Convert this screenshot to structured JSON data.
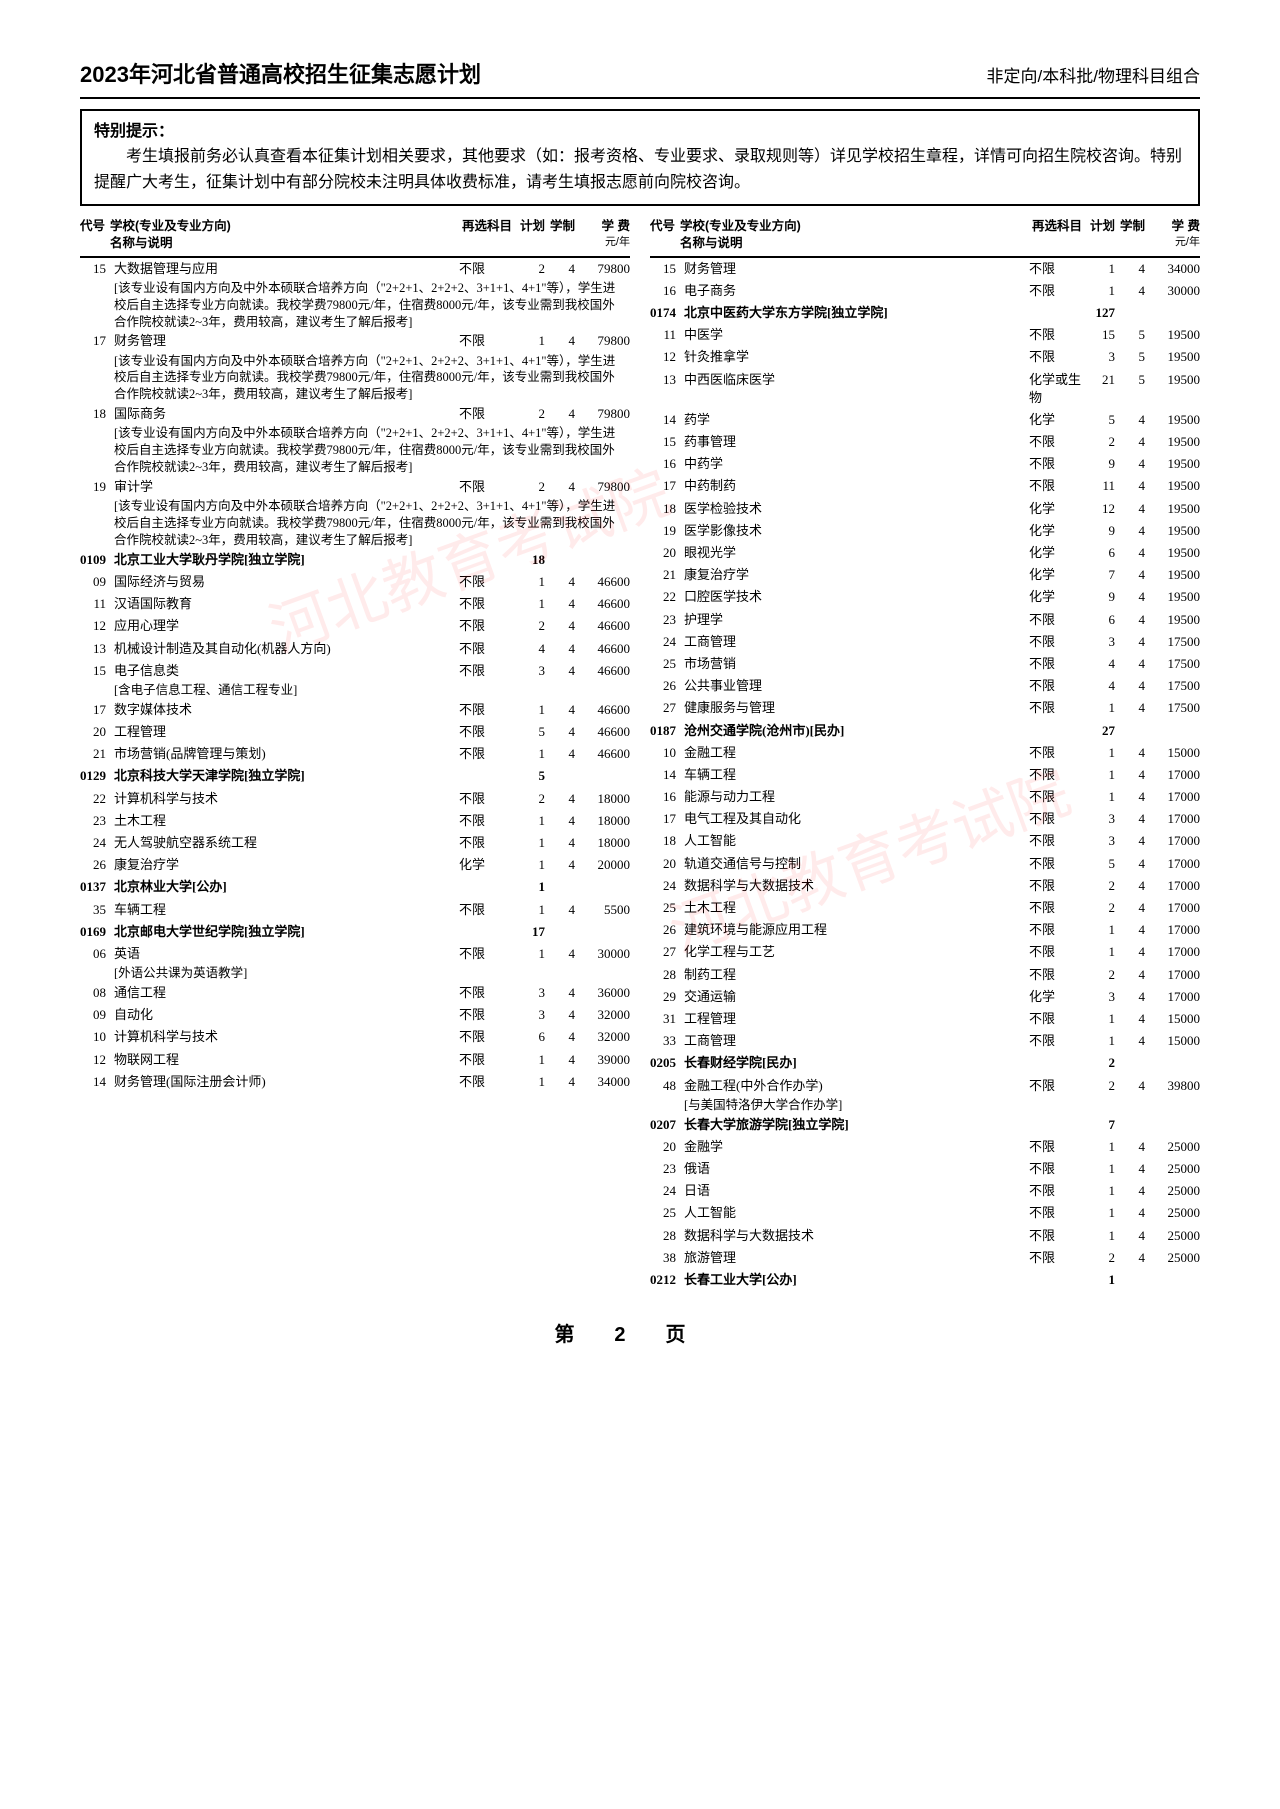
{
  "header": {
    "left": "2023年河北省普通高校招生征集志愿计划",
    "right": "非定向/本科批/物理科目组合"
  },
  "notice": {
    "title": "特别提示：",
    "body": "考生填报前务必认真查看本征集计划相关要求，其他要求（如：报考资格、专业要求、录取规则等）详见学校招生章程，详情可向招生院校咨询。特别提醒广大考生，征集计划中有部分院校未注明具体收费标准，请考生填报志愿前向院校咨询。"
  },
  "colhead": {
    "code": "代号",
    "name1": "学校(专业及专业方向)",
    "name2": "名称与说明",
    "subj": "再选科目",
    "plan": "计划",
    "year": "学制",
    "fee": "学 费",
    "feesub": "元/年"
  },
  "left_rows": [
    {
      "t": "m",
      "code": "15",
      "name": "大数据管理与应用",
      "subj": "不限",
      "plan": "2",
      "year": "4",
      "fee": "79800"
    },
    {
      "t": "r",
      "text": "[该专业设有国内方向及中外本硕联合培养方向（\"2+2+1、2+2+2、3+1+1、4+1\"等），学生进校后自主选择专业方向就读。我校学费79800元/年，住宿费8000元/年，该专业需到我校国外合作院校就读2~3年，费用较高，建议考生了解后报考]"
    },
    {
      "t": "m",
      "code": "17",
      "name": "财务管理",
      "subj": "不限",
      "plan": "1",
      "year": "4",
      "fee": "79800"
    },
    {
      "t": "r",
      "text": "[该专业设有国内方向及中外本硕联合培养方向（\"2+2+1、2+2+2、3+1+1、4+1\"等），学生进校后自主选择专业方向就读。我校学费79800元/年，住宿费8000元/年，该专业需到我校国外合作院校就读2~3年，费用较高，建议考生了解后报考]"
    },
    {
      "t": "m",
      "code": "18",
      "name": "国际商务",
      "subj": "不限",
      "plan": "2",
      "year": "4",
      "fee": "79800"
    },
    {
      "t": "r",
      "text": "[该专业设有国内方向及中外本硕联合培养方向（\"2+2+1、2+2+2、3+1+1、4+1\"等），学生进校后自主选择专业方向就读。我校学费79800元/年，住宿费8000元/年，该专业需到我校国外合作院校就读2~3年，费用较高，建议考生了解后报考]"
    },
    {
      "t": "m",
      "code": "19",
      "name": "审计学",
      "subj": "不限",
      "plan": "2",
      "year": "4",
      "fee": "79800"
    },
    {
      "t": "r",
      "text": "[该专业设有国内方向及中外本硕联合培养方向（\"2+2+1、2+2+2、3+1+1、4+1\"等），学生进校后自主选择专业方向就读。我校学费79800元/年，住宿费8000元/年，该专业需到我校国外合作院校就读2~3年，费用较高，建议考生了解后报考]"
    },
    {
      "t": "s",
      "code": "0109",
      "name": "北京工业大学耿丹学院[独立学院]",
      "plan": "18"
    },
    {
      "t": "m",
      "code": "09",
      "name": "国际经济与贸易",
      "subj": "不限",
      "plan": "1",
      "year": "4",
      "fee": "46600"
    },
    {
      "t": "m",
      "code": "11",
      "name": "汉语国际教育",
      "subj": "不限",
      "plan": "1",
      "year": "4",
      "fee": "46600"
    },
    {
      "t": "m",
      "code": "12",
      "name": "应用心理学",
      "subj": "不限",
      "plan": "2",
      "year": "4",
      "fee": "46600"
    },
    {
      "t": "m",
      "code": "13",
      "name": "机械设计制造及其自动化(机器人方向)",
      "subj": "不限",
      "plan": "4",
      "year": "4",
      "fee": "46600"
    },
    {
      "t": "m",
      "code": "15",
      "name": "电子信息类",
      "subj": "不限",
      "plan": "3",
      "year": "4",
      "fee": "46600"
    },
    {
      "t": "r",
      "text": "[含电子信息工程、通信工程专业]"
    },
    {
      "t": "m",
      "code": "17",
      "name": "数字媒体技术",
      "subj": "不限",
      "plan": "1",
      "year": "4",
      "fee": "46600"
    },
    {
      "t": "m",
      "code": "20",
      "name": "工程管理",
      "subj": "不限",
      "plan": "5",
      "year": "4",
      "fee": "46600"
    },
    {
      "t": "m",
      "code": "21",
      "name": "市场营销(品牌管理与策划)",
      "subj": "不限",
      "plan": "1",
      "year": "4",
      "fee": "46600"
    },
    {
      "t": "s",
      "code": "0129",
      "name": "北京科技大学天津学院[独立学院]",
      "plan": "5"
    },
    {
      "t": "m",
      "code": "22",
      "name": "计算机科学与技术",
      "subj": "不限",
      "plan": "2",
      "year": "4",
      "fee": "18000"
    },
    {
      "t": "m",
      "code": "23",
      "name": "土木工程",
      "subj": "不限",
      "plan": "1",
      "year": "4",
      "fee": "18000"
    },
    {
      "t": "m",
      "code": "24",
      "name": "无人驾驶航空器系统工程",
      "subj": "不限",
      "plan": "1",
      "year": "4",
      "fee": "18000"
    },
    {
      "t": "m",
      "code": "26",
      "name": "康复治疗学",
      "subj": "化学",
      "plan": "1",
      "year": "4",
      "fee": "20000"
    },
    {
      "t": "s",
      "code": "0137",
      "name": "北京林业大学[公办]",
      "plan": "1"
    },
    {
      "t": "m",
      "code": "35",
      "name": "车辆工程",
      "subj": "不限",
      "plan": "1",
      "year": "4",
      "fee": "5500"
    },
    {
      "t": "s",
      "code": "0169",
      "name": "北京邮电大学世纪学院[独立学院]",
      "plan": "17"
    },
    {
      "t": "m",
      "code": "06",
      "name": "英语",
      "subj": "不限",
      "plan": "1",
      "year": "4",
      "fee": "30000"
    },
    {
      "t": "r",
      "text": "[外语公共课为英语教学]"
    },
    {
      "t": "m",
      "code": "08",
      "name": "通信工程",
      "subj": "不限",
      "plan": "3",
      "year": "4",
      "fee": "36000"
    },
    {
      "t": "m",
      "code": "09",
      "name": "自动化",
      "subj": "不限",
      "plan": "3",
      "year": "4",
      "fee": "32000"
    },
    {
      "t": "m",
      "code": "10",
      "name": "计算机科学与技术",
      "subj": "不限",
      "plan": "6",
      "year": "4",
      "fee": "32000"
    },
    {
      "t": "m",
      "code": "12",
      "name": "物联网工程",
      "subj": "不限",
      "plan": "1",
      "year": "4",
      "fee": "39000"
    },
    {
      "t": "m",
      "code": "14",
      "name": "财务管理(国际注册会计师)",
      "subj": "不限",
      "plan": "1",
      "year": "4",
      "fee": "34000"
    }
  ],
  "right_rows": [
    {
      "t": "m",
      "code": "15",
      "name": "财务管理",
      "subj": "不限",
      "plan": "1",
      "year": "4",
      "fee": "34000"
    },
    {
      "t": "m",
      "code": "16",
      "name": "电子商务",
      "subj": "不限",
      "plan": "1",
      "year": "4",
      "fee": "30000"
    },
    {
      "t": "s",
      "code": "0174",
      "name": "北京中医药大学东方学院[独立学院]",
      "plan": "127"
    },
    {
      "t": "m",
      "code": "11",
      "name": "中医学",
      "subj": "不限",
      "plan": "15",
      "year": "5",
      "fee": "19500"
    },
    {
      "t": "m",
      "code": "12",
      "name": "针灸推拿学",
      "subj": "不限",
      "plan": "3",
      "year": "5",
      "fee": "19500"
    },
    {
      "t": "m",
      "code": "13",
      "name": "中西医临床医学",
      "subj": "化学或生物",
      "plan": "21",
      "year": "5",
      "fee": "19500"
    },
    {
      "t": "m",
      "code": "14",
      "name": "药学",
      "subj": "化学",
      "plan": "5",
      "year": "4",
      "fee": "19500"
    },
    {
      "t": "m",
      "code": "15",
      "name": "药事管理",
      "subj": "不限",
      "plan": "2",
      "year": "4",
      "fee": "19500"
    },
    {
      "t": "m",
      "code": "16",
      "name": "中药学",
      "subj": "不限",
      "plan": "9",
      "year": "4",
      "fee": "19500"
    },
    {
      "t": "m",
      "code": "17",
      "name": "中药制药",
      "subj": "不限",
      "plan": "11",
      "year": "4",
      "fee": "19500"
    },
    {
      "t": "m",
      "code": "18",
      "name": "医学检验技术",
      "subj": "化学",
      "plan": "12",
      "year": "4",
      "fee": "19500"
    },
    {
      "t": "m",
      "code": "19",
      "name": "医学影像技术",
      "subj": "化学",
      "plan": "9",
      "year": "4",
      "fee": "19500"
    },
    {
      "t": "m",
      "code": "20",
      "name": "眼视光学",
      "subj": "化学",
      "plan": "6",
      "year": "4",
      "fee": "19500"
    },
    {
      "t": "m",
      "code": "21",
      "name": "康复治疗学",
      "subj": "化学",
      "plan": "7",
      "year": "4",
      "fee": "19500"
    },
    {
      "t": "m",
      "code": "22",
      "name": "口腔医学技术",
      "subj": "化学",
      "plan": "9",
      "year": "4",
      "fee": "19500"
    },
    {
      "t": "m",
      "code": "23",
      "name": "护理学",
      "subj": "不限",
      "plan": "6",
      "year": "4",
      "fee": "19500"
    },
    {
      "t": "m",
      "code": "24",
      "name": "工商管理",
      "subj": "不限",
      "plan": "3",
      "year": "4",
      "fee": "17500"
    },
    {
      "t": "m",
      "code": "25",
      "name": "市场营销",
      "subj": "不限",
      "plan": "4",
      "year": "4",
      "fee": "17500"
    },
    {
      "t": "m",
      "code": "26",
      "name": "公共事业管理",
      "subj": "不限",
      "plan": "4",
      "year": "4",
      "fee": "17500"
    },
    {
      "t": "m",
      "code": "27",
      "name": "健康服务与管理",
      "subj": "不限",
      "plan": "1",
      "year": "4",
      "fee": "17500"
    },
    {
      "t": "s",
      "code": "0187",
      "name": "沧州交通学院(沧州市)[民办]",
      "plan": "27"
    },
    {
      "t": "m",
      "code": "10",
      "name": "金融工程",
      "subj": "不限",
      "plan": "1",
      "year": "4",
      "fee": "15000"
    },
    {
      "t": "m",
      "code": "14",
      "name": "车辆工程",
      "subj": "不限",
      "plan": "1",
      "year": "4",
      "fee": "17000"
    },
    {
      "t": "m",
      "code": "16",
      "name": "能源与动力工程",
      "subj": "不限",
      "plan": "1",
      "year": "4",
      "fee": "17000"
    },
    {
      "t": "m",
      "code": "17",
      "name": "电气工程及其自动化",
      "subj": "不限",
      "plan": "3",
      "year": "4",
      "fee": "17000"
    },
    {
      "t": "m",
      "code": "18",
      "name": "人工智能",
      "subj": "不限",
      "plan": "3",
      "year": "4",
      "fee": "17000"
    },
    {
      "t": "m",
      "code": "20",
      "name": "轨道交通信号与控制",
      "subj": "不限",
      "plan": "5",
      "year": "4",
      "fee": "17000"
    },
    {
      "t": "m",
      "code": "24",
      "name": "数据科学与大数据技术",
      "subj": "不限",
      "plan": "2",
      "year": "4",
      "fee": "17000"
    },
    {
      "t": "m",
      "code": "25",
      "name": "土木工程",
      "subj": "不限",
      "plan": "2",
      "year": "4",
      "fee": "17000"
    },
    {
      "t": "m",
      "code": "26",
      "name": "建筑环境与能源应用工程",
      "subj": "不限",
      "plan": "1",
      "year": "4",
      "fee": "17000"
    },
    {
      "t": "m",
      "code": "27",
      "name": "化学工程与工艺",
      "subj": "不限",
      "plan": "1",
      "year": "4",
      "fee": "17000"
    },
    {
      "t": "m",
      "code": "28",
      "name": "制药工程",
      "subj": "不限",
      "plan": "2",
      "year": "4",
      "fee": "17000"
    },
    {
      "t": "m",
      "code": "29",
      "name": "交通运输",
      "subj": "化学",
      "plan": "3",
      "year": "4",
      "fee": "17000"
    },
    {
      "t": "m",
      "code": "31",
      "name": "工程管理",
      "subj": "不限",
      "plan": "1",
      "year": "4",
      "fee": "15000"
    },
    {
      "t": "m",
      "code": "33",
      "name": "工商管理",
      "subj": "不限",
      "plan": "1",
      "year": "4",
      "fee": "15000"
    },
    {
      "t": "s",
      "code": "0205",
      "name": "长春财经学院[民办]",
      "plan": "2"
    },
    {
      "t": "m",
      "code": "48",
      "name": "金融工程(中外合作办学)",
      "subj": "不限",
      "plan": "2",
      "year": "4",
      "fee": "39800"
    },
    {
      "t": "r",
      "text": "[与美国特洛伊大学合作办学]"
    },
    {
      "t": "s",
      "code": "0207",
      "name": "长春大学旅游学院[独立学院]",
      "plan": "7"
    },
    {
      "t": "m",
      "code": "20",
      "name": "金融学",
      "subj": "不限",
      "plan": "1",
      "year": "4",
      "fee": "25000"
    },
    {
      "t": "m",
      "code": "23",
      "name": "俄语",
      "subj": "不限",
      "plan": "1",
      "year": "4",
      "fee": "25000"
    },
    {
      "t": "m",
      "code": "24",
      "name": "日语",
      "subj": "不限",
      "plan": "1",
      "year": "4",
      "fee": "25000"
    },
    {
      "t": "m",
      "code": "25",
      "name": "人工智能",
      "subj": "不限",
      "plan": "1",
      "year": "4",
      "fee": "25000"
    },
    {
      "t": "m",
      "code": "28",
      "name": "数据科学与大数据技术",
      "subj": "不限",
      "plan": "1",
      "year": "4",
      "fee": "25000"
    },
    {
      "t": "m",
      "code": "38",
      "name": "旅游管理",
      "subj": "不限",
      "plan": "2",
      "year": "4",
      "fee": "25000"
    },
    {
      "t": "s",
      "code": "0212",
      "name": "长春工业大学[公办]",
      "plan": "1"
    }
  ],
  "pagenum": "第2页",
  "watermark": "河北教育考试院"
}
